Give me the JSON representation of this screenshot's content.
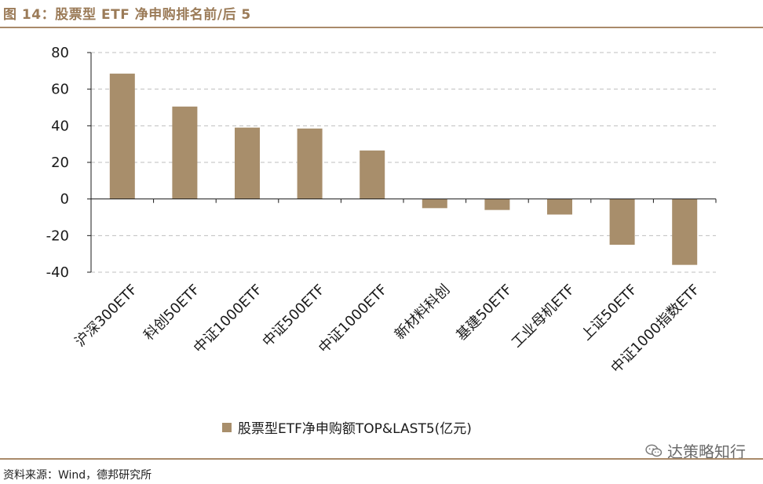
{
  "header": {
    "title": "图 14：股票型 ETF 净申购排名前/后 5"
  },
  "footer": {
    "source": "资料来源：Wind，德邦研究所",
    "watermark": "达策略知行"
  },
  "colors": {
    "bar": "#a88e6b",
    "rule": "#a98a6a",
    "grid": "#bfbfbf"
  },
  "chart_data": {
    "type": "bar",
    "title": "",
    "xlabel": "",
    "ylabel": "",
    "ylim": [
      -40,
      80
    ],
    "yticks": [
      80,
      60,
      40,
      20,
      0,
      -20,
      -40
    ],
    "grid": true,
    "legend_position": "bottom-center",
    "categories": [
      "沪深300ETF",
      "科创50ETF",
      "中证1000ETF",
      "中证500ETF",
      "中证1000ETF",
      "新材料科创",
      "基建50ETF",
      "工业母机ETF",
      "上证50ETF",
      "中证1000指数ETF"
    ],
    "series": [
      {
        "name": "股票型ETF净申购额TOP&LAST5(亿元)",
        "values": [
          68.5,
          50.5,
          39,
          38.5,
          26.5,
          -5,
          -6,
          -8.5,
          -25,
          -36
        ]
      }
    ]
  }
}
